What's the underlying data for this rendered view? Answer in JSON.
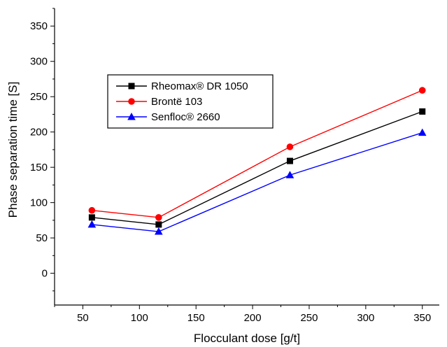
{
  "chart_data": {
    "type": "line",
    "xlabel": "Flocculant dose [g/t]",
    "ylabel": "Phase separation time [S]",
    "xlim": [
      25,
      365
    ],
    "ylim": [
      -45,
      375
    ],
    "xticks": [
      50,
      100,
      150,
      200,
      250,
      300,
      350
    ],
    "yticks": [
      0,
      50,
      100,
      150,
      200,
      250,
      300,
      350
    ],
    "x_tick_labels": [
      "50",
      "100",
      "150",
      "200",
      "250",
      "300",
      "350"
    ],
    "y_tick_labels": [
      "0",
      "50",
      "100",
      "150",
      "200",
      "250",
      "300",
      "350"
    ],
    "grid": false,
    "legend_position": "upper-left",
    "x": [
      58,
      117,
      233,
      350
    ],
    "series": [
      {
        "name": "Rheomax® DR 1050",
        "color": "#000000",
        "marker": "square",
        "values": [
          79,
          69,
          159,
          229
        ]
      },
      {
        "name": "Brontë 103",
        "color": "#ff0000",
        "marker": "circle",
        "values": [
          89,
          79,
          179,
          259
        ]
      },
      {
        "name": "Senfloc® 2660",
        "color": "#0000ff",
        "marker": "triangle",
        "values": [
          69,
          59,
          139,
          199
        ]
      }
    ]
  }
}
